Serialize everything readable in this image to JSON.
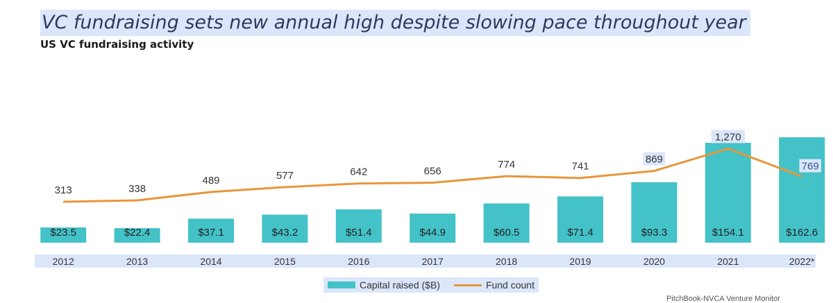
{
  "title": "VC fundraising sets new annual high despite slowing pace throughout year",
  "subtitle": "US VC fundraising activity",
  "source_fragment": "PitchBook-NVCA Venture Monitor",
  "colors": {
    "bar": "#43c2c8",
    "line": "#e8963a",
    "highlight": "#dbe6fb"
  },
  "chart_data": {
    "type": "bar",
    "title": "US VC fundraising activity",
    "categories": [
      "2012",
      "2013",
      "2014",
      "2015",
      "2016",
      "2017",
      "2018",
      "2019",
      "2020",
      "2021",
      "2022*"
    ],
    "series": [
      {
        "name": "Capital raised ($B)",
        "type": "bar",
        "axis": "left",
        "values": [
          23.5,
          22.4,
          37.1,
          43.2,
          51.4,
          44.9,
          60.5,
          71.4,
          93.3,
          154.1,
          162.6
        ],
        "labels": [
          "$23.5",
          "$22.4",
          "$37.1",
          "$43.2",
          "$51.4",
          "$44.9",
          "$60.5",
          "$71.4",
          "$93.3",
          "$154.1",
          "$162.6"
        ]
      },
      {
        "name": "Fund count",
        "type": "line",
        "axis": "right",
        "values": [
          313,
          338,
          489,
          577,
          642,
          656,
          774,
          741,
          869,
          1270,
          769
        ],
        "labels": [
          "313",
          "338",
          "489",
          "577",
          "642",
          "656",
          "774",
          "741",
          "869",
          "1,270",
          "769"
        ]
      }
    ],
    "legend": [
      "Capital raised ($B)",
      "Fund count"
    ],
    "legend_position": "bottom-center",
    "ylim_left": [
      0,
      170
    ],
    "ylim_right": [
      0,
      1300
    ],
    "grid": false
  }
}
